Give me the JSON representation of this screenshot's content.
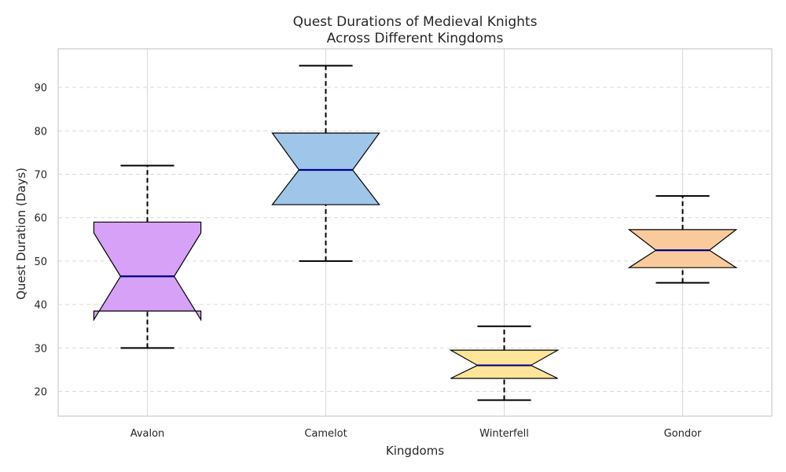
{
  "chart_data": {
    "type": "boxplot",
    "title": [
      "Quest Durations of Medieval Knights",
      "Across Different Kingdoms"
    ],
    "xlabel": "Kingdoms",
    "ylabel": "Quest Duration (Days)",
    "ylim": [
      14.3,
      98.9
    ],
    "yticks": [
      20,
      30,
      40,
      50,
      60,
      70,
      80,
      90
    ],
    "grid": "y-dashed, x-solid",
    "notched": true,
    "categories": [
      "Avalon",
      "Camelot",
      "Winterfell",
      "Gondor"
    ],
    "boxes": [
      {
        "category": "Avalon",
        "whisker_low": 30,
        "q1": 38.5,
        "median": 46.5,
        "q3": 59,
        "whisker_high": 72,
        "notch_low": 36.5,
        "notch_high": 56.5,
        "color": "#d6a1f7"
      },
      {
        "category": "Camelot",
        "whisker_low": 50,
        "q1": 63,
        "median": 71,
        "q3": 79.5,
        "whisker_high": 95,
        "notch_low": 63,
        "notch_high": 79.5,
        "color": "#9fc5e8"
      },
      {
        "category": "Winterfell",
        "whisker_low": 18,
        "q1": 23,
        "median": 26,
        "q3": 29.5,
        "whisker_high": 35,
        "notch_low": 23,
        "notch_high": 29.5,
        "color": "#ffe599"
      },
      {
        "category": "Gondor",
        "whisker_low": 45,
        "q1": 48.5,
        "median": 52.5,
        "q3": 57.25,
        "whisker_high": 65,
        "notch_low": 48.5,
        "notch_high": 57.25,
        "color": "#f9cb9c"
      }
    ],
    "median_color": "#00008b"
  }
}
